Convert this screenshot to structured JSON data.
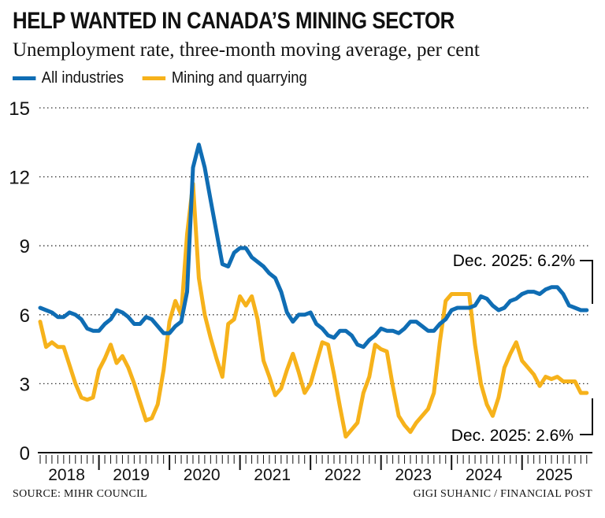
{
  "title": "HELP WANTED IN CANADA’S MINING SECTOR",
  "subtitle": "Unemployment rate, three-month moving average, per cent",
  "source": "SOURCE: MIHR COUNCIL",
  "credit": "GIGI SUHANIC / FINANCIAL POST",
  "chart_data": {
    "type": "line",
    "title": "HELP WANTED IN CANADA’S MINING SECTOR",
    "subtitle": "Unemployment rate, three-month moving average, per cent",
    "x_start": "2018-03",
    "x_end": "2025-12",
    "x_frequency": "monthly",
    "x_tick_labels": [
      "2018",
      "2019",
      "2020",
      "2021",
      "2022",
      "2023",
      "2024",
      "2025"
    ],
    "y_ticks": [
      0,
      3,
      6,
      9,
      12,
      15
    ],
    "ylim": [
      0,
      15
    ],
    "grid": "horizontal dotted",
    "legend": "top-left",
    "series": [
      {
        "name": "All industries",
        "color": "#0f6db4",
        "values": [
          6.3,
          6.2,
          6.1,
          5.9,
          5.9,
          6.1,
          6.0,
          5.8,
          5.4,
          5.3,
          5.3,
          5.6,
          5.8,
          6.2,
          6.1,
          5.9,
          5.6,
          5.6,
          5.9,
          5.8,
          5.5,
          5.2,
          5.2,
          5.5,
          5.7,
          7.0,
          12.4,
          13.4,
          12.4,
          11.0,
          9.6,
          8.2,
          8.1,
          8.7,
          8.9,
          8.9,
          8.5,
          8.3,
          8.1,
          7.8,
          7.6,
          7.0,
          6.1,
          5.7,
          6.0,
          6.0,
          6.1,
          5.6,
          5.4,
          5.1,
          5.0,
          5.3,
          5.3,
          5.1,
          4.7,
          4.6,
          4.9,
          5.1,
          5.4,
          5.3,
          5.3,
          5.2,
          5.4,
          5.7,
          5.7,
          5.5,
          5.3,
          5.3,
          5.6,
          5.8,
          6.2,
          6.3,
          6.3,
          6.3,
          6.4,
          6.8,
          6.7,
          6.4,
          6.2,
          6.3,
          6.6,
          6.7,
          6.9,
          7.0,
          7.0,
          6.9,
          7.1,
          7.2,
          7.2,
          6.9,
          6.4,
          6.3,
          6.2,
          6.2
        ]
      },
      {
        "name": "Mining and quarrying",
        "color": "#f6b21b",
        "values": [
          5.7,
          4.6,
          4.8,
          4.6,
          4.6,
          3.8,
          3.0,
          2.4,
          2.3,
          2.4,
          3.6,
          4.1,
          4.7,
          3.9,
          4.2,
          3.7,
          3.0,
          2.2,
          1.4,
          1.5,
          2.1,
          3.6,
          5.7,
          6.6,
          6.0,
          9.5,
          11.7,
          7.6,
          6.0,
          5.0,
          4.1,
          3.3,
          5.6,
          5.8,
          6.8,
          6.4,
          6.8,
          5.8,
          4.0,
          3.3,
          2.5,
          2.8,
          3.6,
          4.3,
          3.5,
          2.6,
          3.0,
          3.9,
          4.8,
          4.7,
          3.4,
          2.0,
          0.7,
          1.0,
          1.3,
          2.6,
          3.3,
          4.7,
          4.5,
          4.4,
          2.9,
          1.6,
          1.2,
          0.9,
          1.3,
          1.6,
          1.9,
          2.6,
          4.8,
          6.6,
          6.9,
          6.9,
          6.9,
          6.9,
          4.7,
          3.0,
          2.1,
          1.6,
          2.4,
          3.7,
          4.3,
          4.8,
          4.0,
          3.7,
          3.4,
          2.9,
          3.3,
          3.2,
          3.3,
          3.1,
          3.1,
          3.1,
          2.6,
          2.6
        ]
      }
    ],
    "annotations": [
      "Dec. 2025: 6.2%",
      "Dec. 2025: 2.6%"
    ]
  }
}
